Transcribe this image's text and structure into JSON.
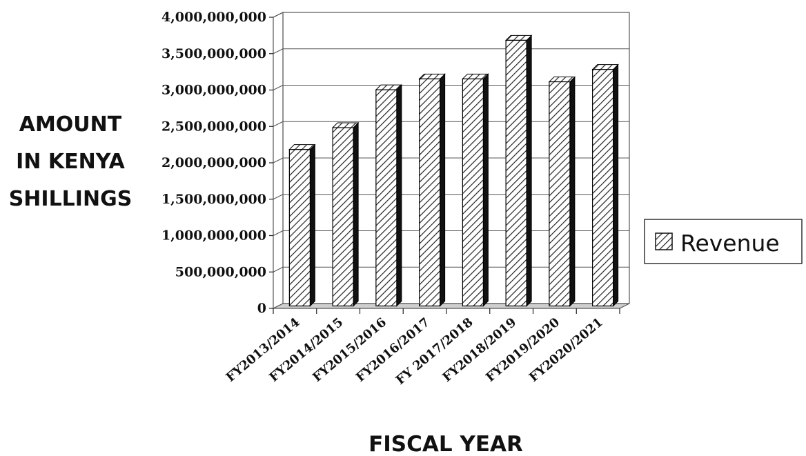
{
  "chart_data": {
    "type": "bar",
    "categories": [
      "FY2013/2014",
      "FY2014/2015",
      "FY2015/2016",
      "FY2016/2017",
      "FY 2017/2018",
      "FY2018/2019",
      "FY2019/2020",
      "FY2020/2021"
    ],
    "series": [
      {
        "name": "Revenue",
        "values": [
          2150000000,
          2450000000,
          2970000000,
          3120000000,
          3120000000,
          3650000000,
          3080000000,
          3250000000
        ]
      }
    ],
    "yticks": [
      "0",
      "500,000,000",
      "1,000,000,000",
      "1,500,000,000",
      "2,000,000,000",
      "2,500,000,000",
      "3,000,000,000",
      "3,500,000,000",
      "4,000,000,000"
    ],
    "ylim": [
      0,
      4000000000
    ],
    "ylabel_lines": [
      "AMOUNT",
      "IN KENYA",
      "SHILLINGS"
    ],
    "xlabel": "FISCAL YEAR",
    "grid": true,
    "legend": {
      "placement": "right",
      "entries": [
        "Revenue"
      ]
    },
    "style": "3d-hatched",
    "colors": {
      "bar_front": "#ffffff",
      "bar_hatch": "#222222",
      "bar_side": "#111111",
      "grid": "#555555"
    }
  }
}
